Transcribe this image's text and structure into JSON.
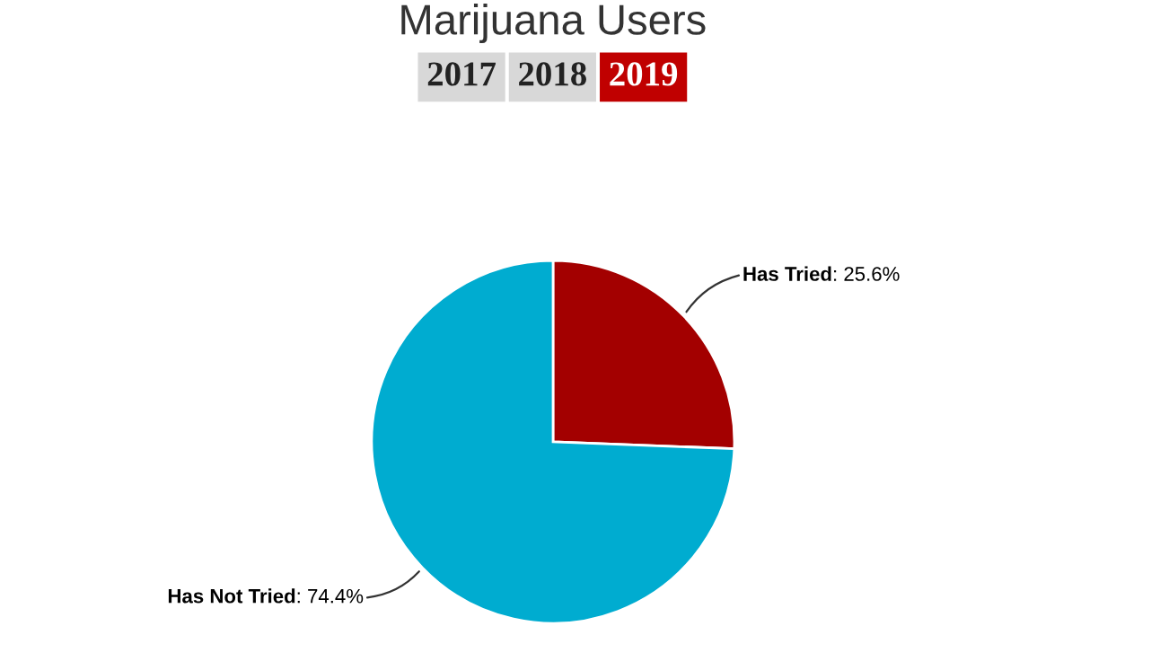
{
  "chart_data": {
    "type": "pie",
    "title": "Marijuana Users",
    "annotations": [
      "2017",
      "2018",
      "2019"
    ],
    "categories": [
      "Has Tried",
      "Has Not Tried"
    ],
    "values": [
      25.6,
      74.4
    ],
    "value_labels": [
      ": 25.6%",
      ": 74.4%"
    ],
    "colors": [
      "#a30000",
      "#00acd0"
    ]
  }
}
